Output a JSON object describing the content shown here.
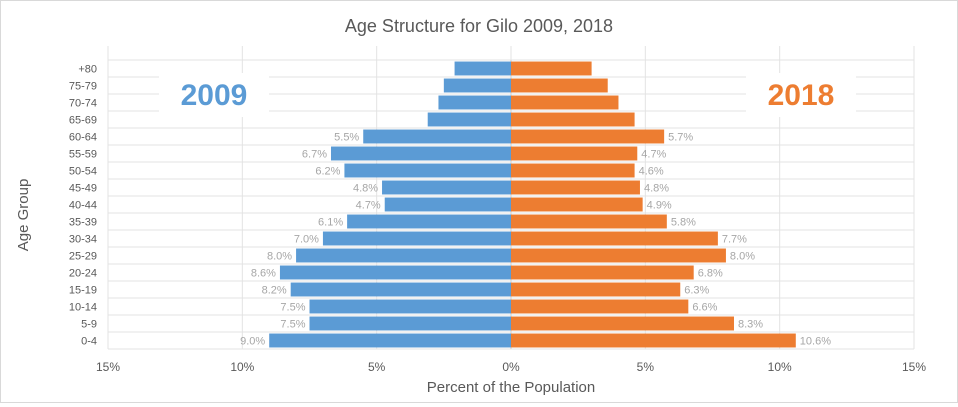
{
  "chart_data": {
    "type": "bar",
    "orientation": "horizontal",
    "title": "Age Structure for Gilo 2009, 2018",
    "xlabel": "Percent of the Population",
    "ylabel": "Age Group",
    "categories": [
      "0-4",
      "5-9",
      "10-14",
      "15-19",
      "20-24",
      "25-29",
      "30-34",
      "35-39",
      "40-44",
      "45-49",
      "50-54",
      "55-59",
      "60-64",
      "65-69",
      "70-74",
      "75-79",
      "+80"
    ],
    "xticks": [
      "15%",
      "10%",
      "5%",
      "0%",
      "5%",
      "10%",
      "15%"
    ],
    "xlim": [
      -15,
      15
    ],
    "grid": true,
    "series": [
      {
        "name": "2009",
        "side": "left",
        "color": "#5b9bd5",
        "values": [
          9.0,
          7.5,
          7.5,
          8.2,
          8.6,
          8.0,
          7.0,
          6.1,
          4.7,
          4.8,
          6.2,
          6.7,
          5.5,
          3.1,
          2.7,
          2.5,
          2.1
        ],
        "labels": [
          "9.0%",
          "7.5%",
          "7.5%",
          "8.2%",
          "8.6%",
          "8.0%",
          "7.0%",
          "6.1%",
          "4.7%",
          "4.8%",
          "6.2%",
          "6.7%",
          "5.5%",
          "",
          "",
          "",
          ""
        ]
      },
      {
        "name": "2018",
        "side": "right",
        "color": "#ed7d31",
        "values": [
          10.6,
          8.3,
          6.6,
          6.3,
          6.8,
          8.0,
          7.7,
          5.8,
          4.9,
          4.8,
          4.6,
          4.7,
          5.7,
          4.6,
          4.0,
          3.6,
          3.0
        ],
        "labels": [
          "10.6%",
          "8.3%",
          "6.6%",
          "6.3%",
          "6.8%",
          "8.0%",
          "7.7%",
          "5.8%",
          "4.9%",
          "4.8%",
          "4.6%",
          "4.7%",
          "5.7%",
          "",
          "",
          "",
          ""
        ]
      }
    ]
  }
}
